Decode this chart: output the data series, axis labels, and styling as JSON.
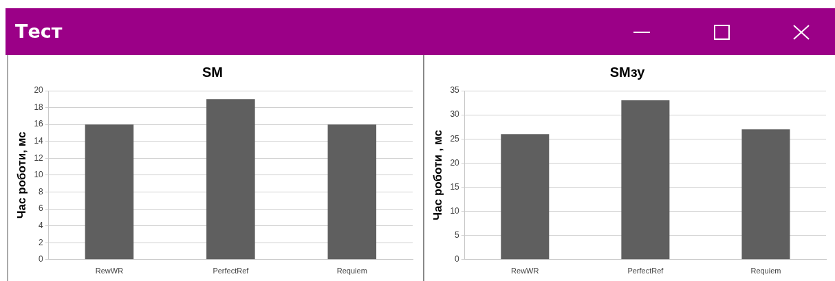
{
  "chart_data": [
    {
      "type": "other",
      "title": "Тест"
    },
    {
      "type": "bar",
      "title": "SM",
      "ylabel": "Час роботи, мс",
      "categories": [
        "RewWR",
        "PerfectRef",
        "Requiem"
      ],
      "values": [
        16,
        19,
        16
      ],
      "color": "#5f5f5f",
      "ylim": [
        0,
        20
      ],
      "yticks": [
        0,
        2,
        4,
        6,
        8,
        10,
        12,
        14,
        16,
        18,
        20
      ],
      "grid": "y"
    },
    {
      "type": "bar",
      "title": "SMзу",
      "ylabel": "Час роботи , мс",
      "categories": [
        "RewWR",
        "PerfectRef",
        "Requiem"
      ],
      "values": [
        26,
        33,
        27
      ],
      "color": "#5f5f5f",
      "ylim": [
        0,
        35
      ],
      "yticks": [
        0,
        5,
        10,
        15,
        20,
        25,
        30,
        35
      ],
      "grid": "y"
    }
  ]
}
